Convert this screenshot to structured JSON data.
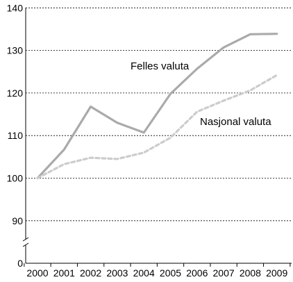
{
  "chart_data": {
    "type": "line",
    "title": "",
    "xlabel": "",
    "ylabel": "",
    "x": [
      "2000",
      "2001",
      "2002",
      "2003",
      "2004",
      "2005",
      "2006",
      "2007",
      "2008",
      "2009"
    ],
    "ylim": [
      0,
      140
    ],
    "y_axis_break": [
      0,
      85
    ],
    "y_ticks": [
      0,
      90,
      100,
      110,
      120,
      130,
      140
    ],
    "grid": "horizontal-dashed",
    "legend": "inline",
    "series": [
      {
        "name": "Felles valuta",
        "values": [
          100,
          106.7,
          116.8,
          113.0,
          110.7,
          119.8,
          125.7,
          130.7,
          133.8,
          133.9
        ],
        "color": "#aaaaaa",
        "style": "solid"
      },
      {
        "name": "Nasjonal valuta",
        "values": [
          100,
          103.3,
          104.8,
          104.5,
          106.0,
          109.5,
          115.6,
          118.2,
          120.6,
          124.2
        ],
        "color": "#cccccc",
        "style": "dashed"
      }
    ]
  }
}
